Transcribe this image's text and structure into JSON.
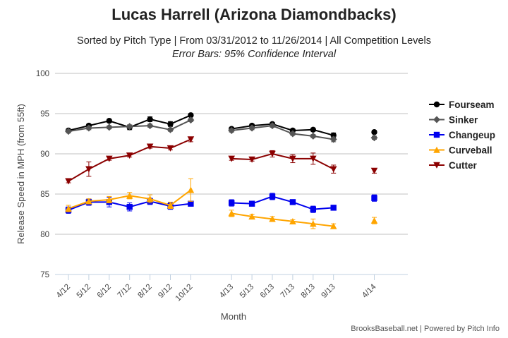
{
  "title": "Lucas Harrell (Arizona Diamondbacks)",
  "subtitle": "Sorted by Pitch Type | From 03/31/2012 to 11/26/2014 | All Competition Levels",
  "subtitle2": "Error Bars: 95% Confidence Interval",
  "credits": "BrooksBaseball.net | Powered by Pitch Info",
  "chart_data": {
    "type": "line",
    "title": "Lucas Harrell (Arizona Diamondbacks)",
    "xlabel": "Month",
    "ylabel": "Release Speed in MPH (from 55ft)",
    "ylim": [
      75,
      100
    ],
    "yticks": [
      75,
      80,
      85,
      90,
      95,
      100
    ],
    "grid": true,
    "legend_position": "right",
    "categories": [
      "4/12",
      "5/12",
      "6/12",
      "7/12",
      "8/12",
      "9/12",
      "10/12",
      "4/13",
      "5/13",
      "6/13",
      "7/13",
      "8/13",
      "9/13",
      "4/14"
    ],
    "series": [
      {
        "name": "Fourseam",
        "color": "#000000",
        "marker": "circle",
        "values": [
          92.9,
          93.5,
          94.1,
          93.3,
          94.3,
          93.7,
          94.8,
          93.1,
          93.5,
          93.7,
          92.9,
          93.0,
          92.3,
          92.7
        ],
        "errors": [
          0.2,
          0.2,
          0.2,
          0.3,
          0.3,
          0.3,
          0.2,
          0.2,
          0.2,
          0.2,
          0.2,
          0.2,
          0.3,
          0.2
        ]
      },
      {
        "name": "Sinker",
        "color": "#555555",
        "marker": "diamond",
        "values": [
          92.8,
          93.2,
          93.3,
          93.4,
          93.5,
          93.0,
          94.2,
          92.9,
          93.2,
          93.5,
          92.5,
          92.2,
          91.8,
          92.0
        ],
        "errors": [
          0.2,
          0.2,
          0.2,
          0.2,
          0.2,
          0.2,
          0.2,
          0.2,
          0.2,
          0.2,
          0.2,
          0.2,
          0.3,
          0.2
        ]
      },
      {
        "name": "Changeup",
        "color": "#0000ee",
        "marker": "square",
        "values": [
          83.0,
          84.0,
          84.0,
          83.4,
          84.1,
          83.5,
          83.8,
          83.9,
          83.8,
          84.7,
          84.0,
          83.1,
          83.3,
          84.5
        ],
        "errors": [
          0.4,
          0.4,
          0.6,
          0.5,
          0.4,
          0.4,
          0.3,
          0.4,
          0.3,
          0.4,
          0.3,
          0.4,
          0.3,
          0.4
        ]
      },
      {
        "name": "Curveball",
        "color": "#ffa500",
        "marker": "triangle",
        "values": [
          83.2,
          84.1,
          84.3,
          84.8,
          84.4,
          83.6,
          85.5,
          82.6,
          82.2,
          81.9,
          81.6,
          81.3,
          81.0,
          81.7
        ],
        "errors": [
          0.4,
          0.3,
          0.4,
          0.4,
          0.5,
          0.4,
          1.4,
          0.4,
          0.3,
          0.3,
          0.2,
          0.6,
          0.3,
          0.4
        ]
      },
      {
        "name": "Cutter",
        "color": "#8b0000",
        "marker": "triangle-down",
        "values": [
          86.6,
          88.1,
          89.4,
          89.8,
          90.9,
          90.7,
          91.8,
          89.4,
          89.3,
          90.0,
          89.4,
          89.4,
          88.1,
          87.9
        ],
        "errors": [
          0.2,
          0.9,
          0.2,
          0.2,
          0.2,
          0.2,
          0.3,
          0.2,
          0.2,
          0.4,
          0.5,
          0.7,
          0.5,
          0.3
        ]
      }
    ],
    "segments": [
      [
        0,
        6
      ],
      [
        7,
        12
      ],
      [
        13,
        13
      ]
    ]
  }
}
